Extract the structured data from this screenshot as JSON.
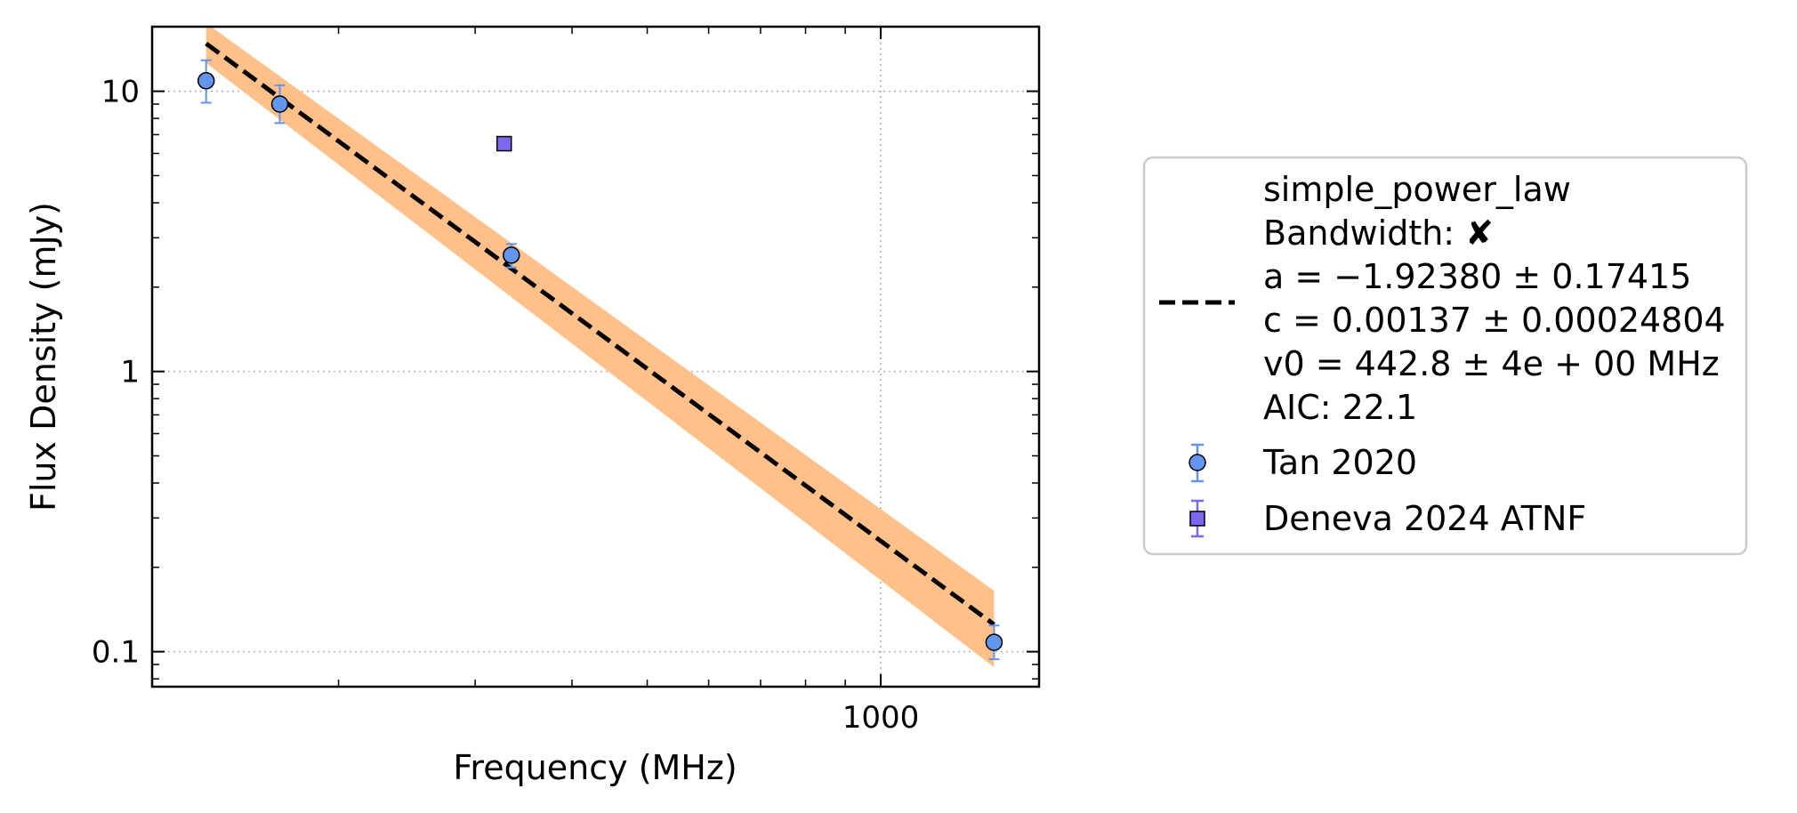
{
  "chart_data": {
    "type": "scatter",
    "xlabel": "Frequency (MHz)",
    "ylabel": "Flux Density (mJy)",
    "xscale": "log",
    "yscale": "log",
    "xlim": [
      115,
      1600
    ],
    "ylim": [
      0.075,
      17
    ],
    "x_ticks": [
      {
        "value": 1000,
        "label": "1000"
      }
    ],
    "y_ticks": [
      {
        "value": 0.1,
        "label": "0.1"
      },
      {
        "value": 1,
        "label": "1"
      },
      {
        "value": 10,
        "label": "10"
      }
    ],
    "grid": true,
    "legend_position": "outside-right",
    "series": [
      {
        "name": "Tan 2020",
        "marker": "circle",
        "color": "#6495ed",
        "points": [
          {
            "x": 135,
            "y": 10.9,
            "yerr": [
              1.8,
              2.0
            ]
          },
          {
            "x": 168,
            "y": 9.0,
            "yerr": [
              1.3,
              1.5
            ]
          },
          {
            "x": 334,
            "y": 2.6,
            "yerr": [
              0.25,
              0.25
            ]
          },
          {
            "x": 1400,
            "y": 0.108,
            "yerr": [
              0.014,
              0.016
            ]
          }
        ]
      },
      {
        "name": "Deneva 2024 ATNF",
        "marker": "square",
        "color": "#7b68ee",
        "points": [
          {
            "x": 327,
            "y": 6.5,
            "yerr": [
              0.3,
              0.3
            ]
          }
        ]
      }
    ],
    "fit": {
      "model": "simple_power_law",
      "color": "#000000",
      "band_color": "#ffc08a",
      "a": -1.9238,
      "c": 0.00137,
      "v0": 442.8,
      "x_range": [
        135,
        1400
      ],
      "y_start": 14.8,
      "y_end": 0.125,
      "band_start": [
        12.6,
        17.5
      ],
      "band_end": [
        0.088,
        0.165
      ]
    },
    "legend": {
      "fit_lines": [
        "simple_power_law",
        "Bandwidth: ✘",
        "a = −1.92380 ± 0.17415",
        "c = 0.00137 ± 0.00024804",
        "v0 = 442.8 ± 4e + 00 MHz",
        "AIC: 22.1"
      ],
      "entries": [
        "Tan 2020",
        "Deneva 2024 ATNF"
      ]
    }
  }
}
